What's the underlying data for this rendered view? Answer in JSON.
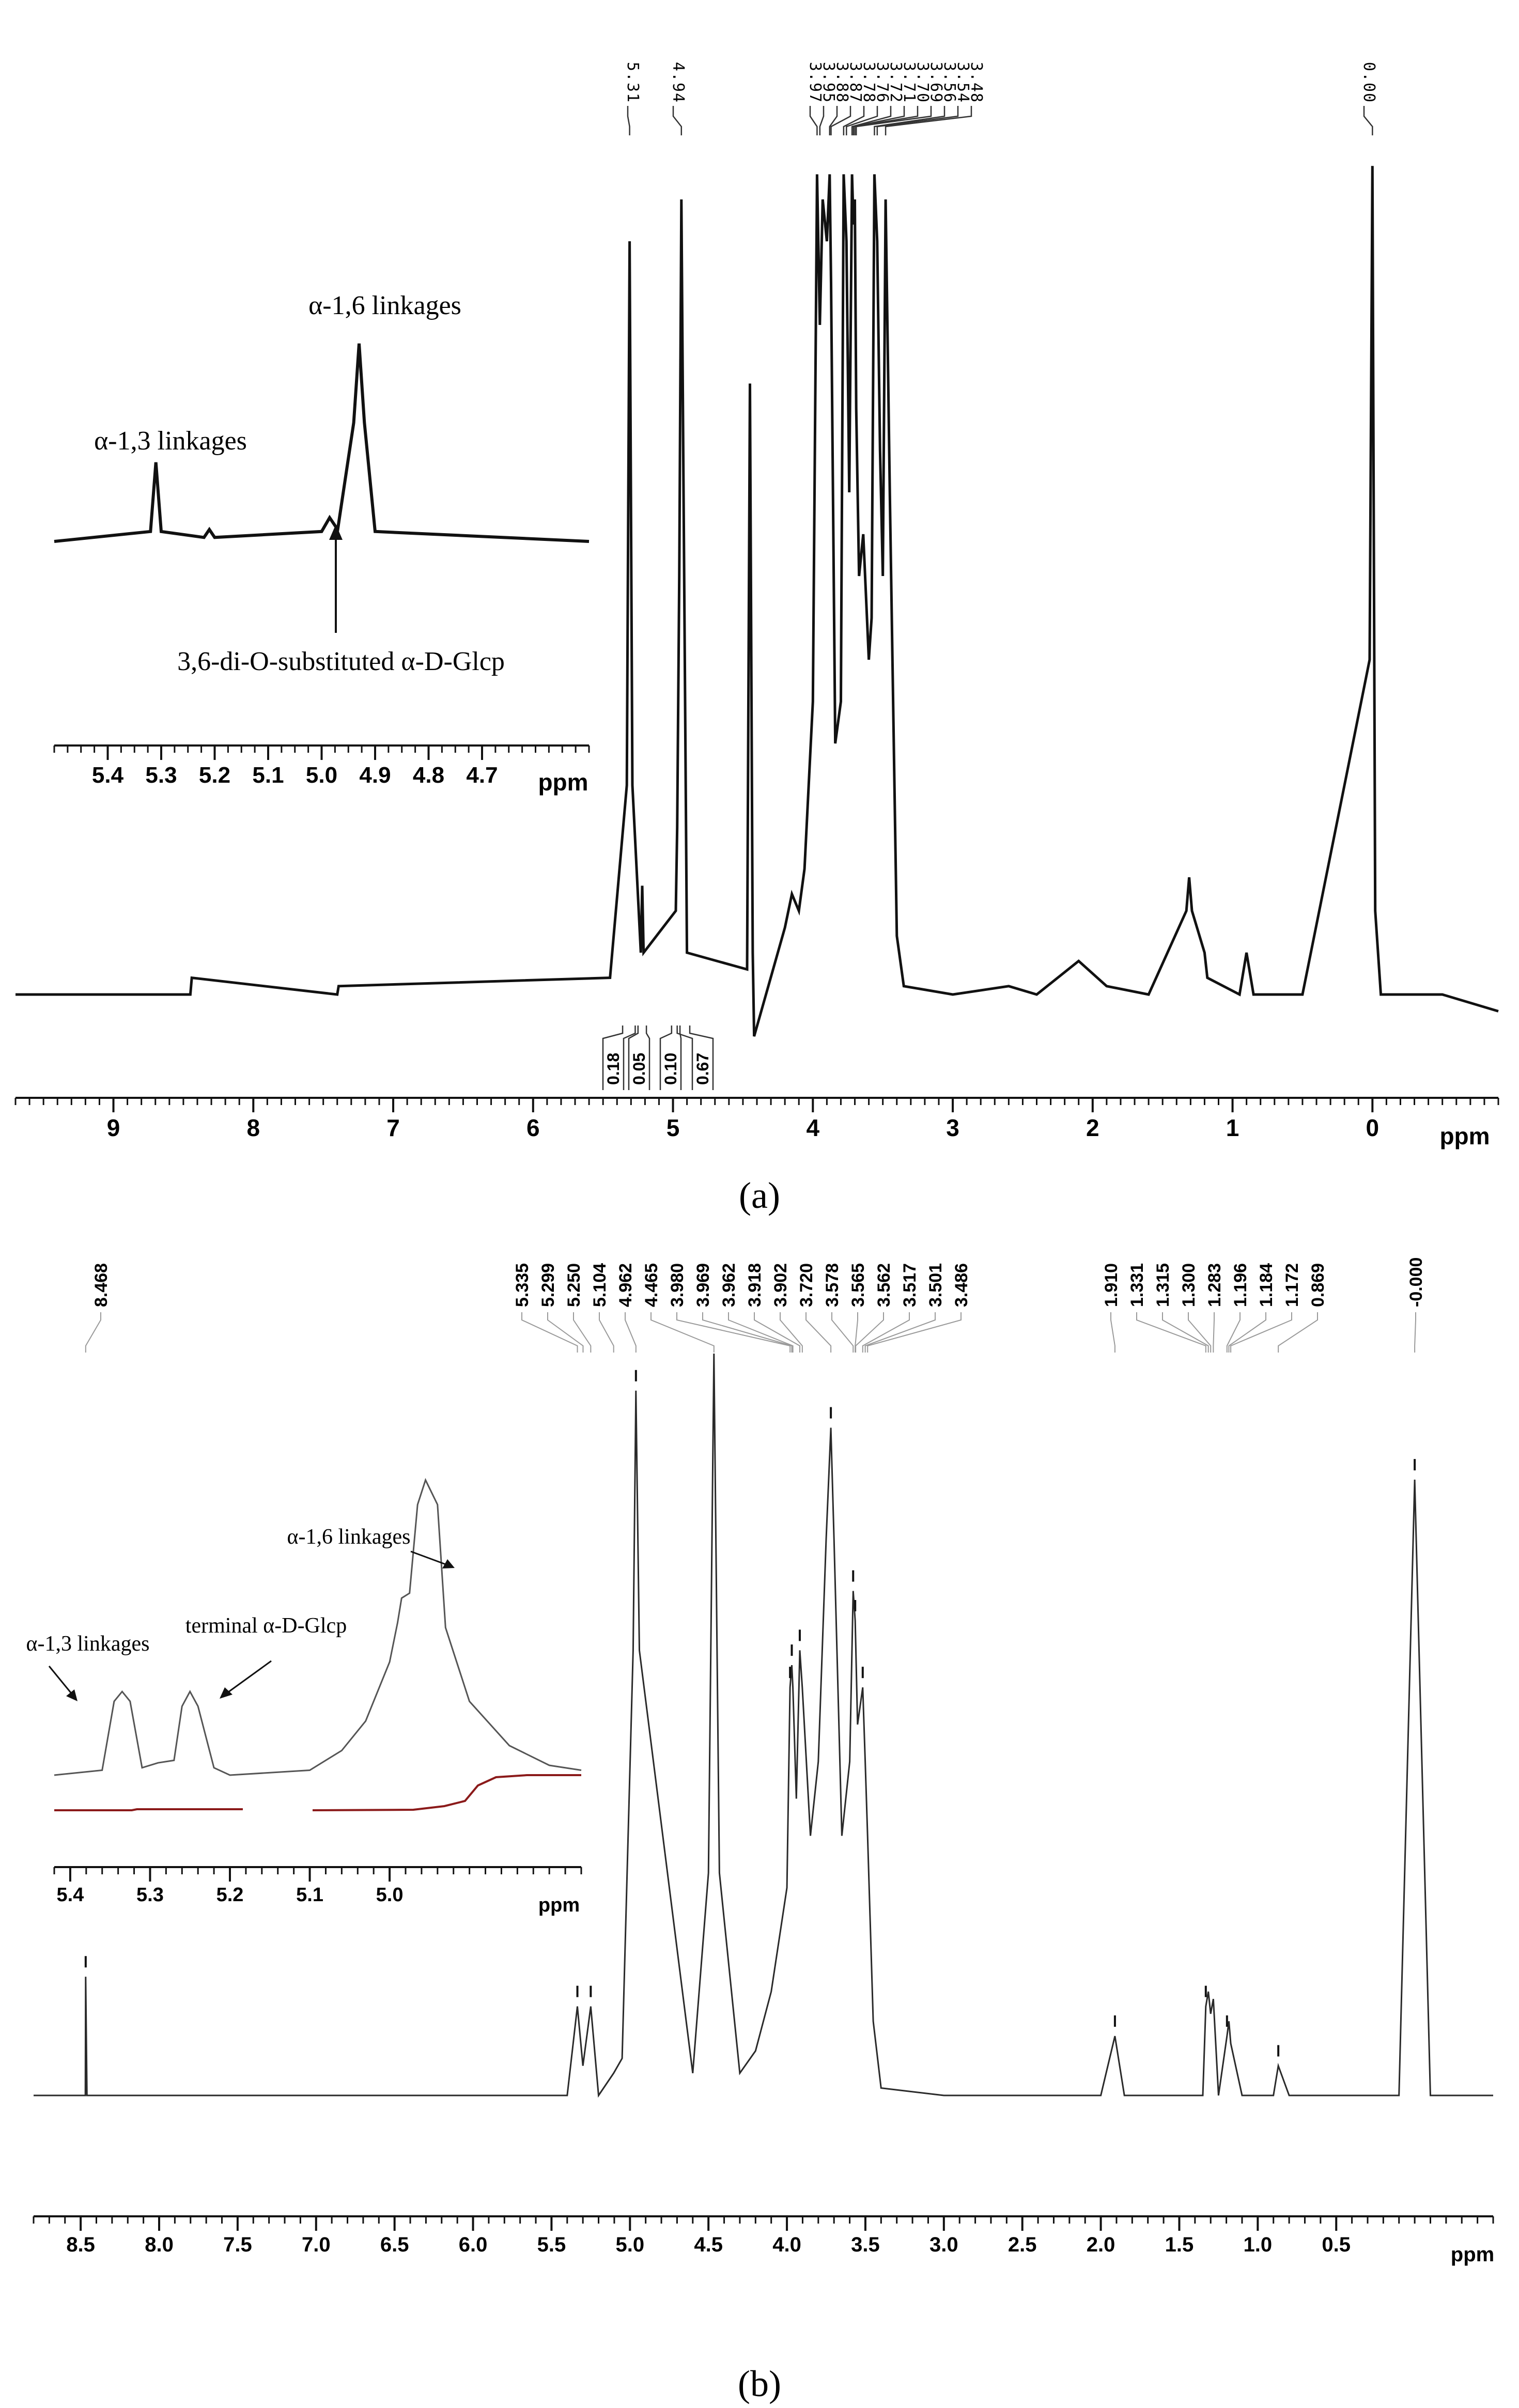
{
  "figure": {
    "caption_a": "(a)",
    "caption_b": "(b)"
  },
  "colors": {
    "trace": "#111111",
    "trace_b": "#2a2a2a",
    "integral_b": "#8b1a1a",
    "axis": "#111111",
    "label_line": "#9a9a9a"
  },
  "chart_data": [
    {
      "type": "line",
      "panel": "a",
      "x_unit": "ppm",
      "xlim": [
        9.7,
        -0.9
      ],
      "x_axis_reversed": true,
      "x_ticks": [
        9,
        8,
        7,
        6,
        5,
        4,
        3,
        2,
        1,
        0
      ],
      "peak_labels": [
        "5.31",
        "4.94",
        "3.97",
        "3.95",
        "3.88",
        "3.87",
        "3.78",
        "3.76",
        "3.72",
        "3.71",
        "3.70",
        "3.69",
        "3.56",
        "3.54",
        "3.48",
        "0.00"
      ],
      "integrals": [
        "0.18",
        "0.05",
        "0.10",
        "0.67"
      ],
      "series": [
        {
          "x": [
            9.7,
            8.45,
            8.44,
            7.4,
            7.39,
            5.45,
            5.33,
            5.31,
            5.29,
            5.23,
            5.22,
            5.21,
            4.98,
            4.97,
            4.955,
            4.94,
            4.92,
            4.9,
            4.47,
            4.45,
            4.43,
            4.42,
            4.2,
            4.15,
            4.1,
            4.06,
            4.0,
            3.97,
            3.95,
            3.93,
            3.9,
            3.88,
            3.87,
            3.84,
            3.8,
            3.78,
            3.76,
            3.74,
            3.72,
            3.71,
            3.7,
            3.69,
            3.67,
            3.64,
            3.6,
            3.58,
            3.56,
            3.54,
            3.52,
            3.5,
            3.48,
            3.45,
            3.4,
            3.35,
            3.0,
            2.6,
            2.4,
            2.1,
            1.9,
            1.6,
            1.33,
            1.31,
            1.29,
            1.2,
            1.18,
            0.95,
            0.9,
            0.85,
            0.5,
            0.02,
            0.0,
            -0.02,
            -0.06,
            -0.5,
            -0.9
          ],
          "y": [
            0.0,
            0.0,
            0.02,
            0.0,
            0.01,
            0.02,
            0.25,
            0.9,
            0.25,
            0.05,
            0.13,
            0.05,
            0.1,
            0.2,
            0.5,
            0.95,
            0.5,
            0.05,
            0.03,
            0.73,
            0.05,
            -0.05,
            0.08,
            0.12,
            0.1,
            0.15,
            0.35,
            0.98,
            0.8,
            0.95,
            0.9,
            0.98,
            0.85,
            0.3,
            0.35,
            0.98,
            0.9,
            0.6,
            0.98,
            0.92,
            0.95,
            0.7,
            0.5,
            0.55,
            0.4,
            0.45,
            0.98,
            0.9,
            0.65,
            0.5,
            0.95,
            0.6,
            0.07,
            0.01,
            0.0,
            0.01,
            0.0,
            0.04,
            0.01,
            0.0,
            0.1,
            0.14,
            0.1,
            0.05,
            0.02,
            0.0,
            0.05,
            0.0,
            0.0,
            0.4,
            0.99,
            0.1,
            0.0,
            0.0,
            -0.02
          ]
        }
      ],
      "inset": {
        "x_unit": "ppm",
        "xlim": [
          5.5,
          4.5
        ],
        "x_ticks": [
          5.4,
          5.3,
          5.2,
          5.1,
          5.0,
          4.9,
          4.8,
          4.7
        ],
        "annotations": [
          {
            "text": "α-1,6 linkages"
          },
          {
            "text": "α-1,3 linkages"
          },
          {
            "text": "3,6-di-O-substituted α-D-Glcp"
          }
        ],
        "series": [
          {
            "x": [
              5.5,
              5.32,
              5.31,
              5.3,
              5.22,
              5.21,
              5.2,
              5.0,
              4.985,
              4.97,
              4.94,
              4.93,
              4.92,
              4.9,
              4.5
            ],
            "y": [
              0.0,
              0.05,
              0.4,
              0.05,
              0.02,
              0.06,
              0.02,
              0.05,
              0.12,
              0.06,
              0.6,
              1.0,
              0.6,
              0.05,
              0.0
            ]
          }
        ]
      }
    },
    {
      "type": "line",
      "panel": "b",
      "x_unit": "ppm",
      "xlim": [
        8.8,
        -0.5
      ],
      "x_axis_reversed": true,
      "x_ticks": [
        8.5,
        8.0,
        7.5,
        7.0,
        6.5,
        6.0,
        5.5,
        5.0,
        4.5,
        4.0,
        3.5,
        3.0,
        2.5,
        2.0,
        1.5,
        1.0,
        0.5
      ],
      "peak_labels": [
        "8.468",
        "5.335",
        "5.299",
        "5.250",
        "5.104",
        "4.962",
        "4.465",
        "3.980",
        "3.969",
        "3.962",
        "3.918",
        "3.902",
        "3.720",
        "3.578",
        "3.565",
        "3.562",
        "3.517",
        "3.501",
        "3.486",
        "1.910",
        "1.331",
        "1.315",
        "1.300",
        "1.283",
        "1.196",
        "1.184",
        "1.172",
        "0.869",
        "-0.000"
      ],
      "series": [
        {
          "x": [
            8.8,
            8.47,
            8.468,
            8.46,
            5.4,
            5.335,
            5.3,
            5.25,
            5.2,
            5.104,
            5.05,
            4.98,
            4.962,
            4.94,
            4.6,
            4.5,
            4.465,
            4.43,
            4.3,
            4.2,
            4.1,
            4.0,
            3.98,
            3.969,
            3.962,
            3.94,
            3.918,
            3.902,
            3.85,
            3.8,
            3.75,
            3.72,
            3.7,
            3.65,
            3.6,
            3.578,
            3.565,
            3.55,
            3.517,
            3.501,
            3.486,
            3.45,
            3.4,
            3.0,
            2.0,
            1.91,
            1.85,
            1.35,
            1.331,
            1.315,
            1.3,
            1.283,
            1.25,
            1.196,
            1.184,
            1.172,
            1.1,
            0.9,
            0.869,
            0.8,
            0.1,
            0.0,
            -0.1,
            -0.5
          ],
          "y": [
            0.0,
            0.0,
            0.16,
            0.0,
            0.0,
            0.12,
            0.04,
            0.12,
            0.0,
            0.03,
            0.05,
            0.6,
            0.95,
            0.6,
            0.03,
            0.3,
            1.0,
            0.3,
            0.03,
            0.06,
            0.14,
            0.28,
            0.55,
            0.58,
            0.55,
            0.4,
            0.6,
            0.55,
            0.35,
            0.45,
            0.75,
            0.9,
            0.75,
            0.35,
            0.45,
            0.68,
            0.64,
            0.5,
            0.55,
            0.45,
            0.35,
            0.1,
            0.01,
            0.0,
            0.0,
            0.08,
            0.0,
            0.0,
            0.12,
            0.14,
            0.11,
            0.13,
            0.0,
            0.08,
            0.1,
            0.07,
            0.0,
            0.0,
            0.04,
            0.0,
            0.0,
            0.83,
            0.0,
            0.0
          ]
        }
      ],
      "inset": {
        "x_unit": "ppm",
        "xlim": [
          5.42,
          4.76
        ],
        "x_ticks": [
          5.4,
          5.3,
          5.2,
          5.1,
          5.0
        ],
        "annotations": [
          {
            "text": "α-1,6 linkages"
          },
          {
            "text": "α-1,3 linkages"
          },
          {
            "text": "terminal α-D-Glcp"
          }
        ],
        "series": [
          {
            "x": [
              5.42,
              5.36,
              5.345,
              5.335,
              5.325,
              5.31,
              5.29,
              5.27,
              5.26,
              5.25,
              5.24,
              5.22,
              5.2,
              5.1,
              5.06,
              5.03,
              5.0,
              4.99,
              4.985,
              4.975,
              4.965,
              4.955,
              4.94,
              4.93,
              4.9,
              4.85,
              4.8,
              4.76
            ],
            "y": [
              0.0,
              0.02,
              0.3,
              0.34,
              0.3,
              0.03,
              0.05,
              0.06,
              0.28,
              0.34,
              0.28,
              0.03,
              0.0,
              0.02,
              0.1,
              0.22,
              0.46,
              0.62,
              0.72,
              0.74,
              1.1,
              1.2,
              1.1,
              0.6,
              0.3,
              0.12,
              0.04,
              0.02
            ]
          }
        ]
      }
    }
  ]
}
